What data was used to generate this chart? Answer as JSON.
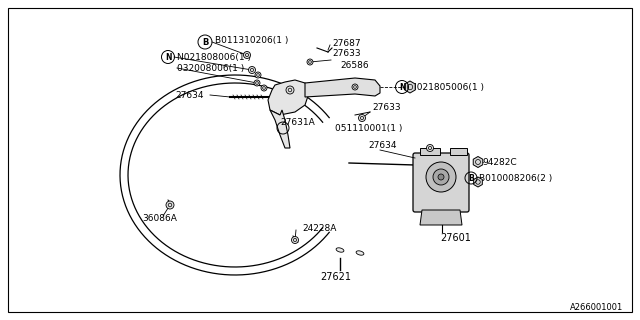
{
  "bg_color": "#ffffff",
  "line_color": "#000000",
  "fig_width": 6.4,
  "fig_height": 3.2,
  "dpi": 100,
  "part_number_ref": "A266001001",
  "labels": {
    "B_top": "B011310206(1 )",
    "N_top": "N021808006(1 )",
    "top_small": "032008006(1 )",
    "part27687": "27687",
    "part27633_top": "27633",
    "part26586": "26586",
    "part27634_left": "27634",
    "part27631A": "27631A",
    "N_right": "N021805006(1 )",
    "part27633_right": "27633",
    "part05111": "051110001(1 )",
    "part27634_right": "27634",
    "part94282C": "94282C",
    "B_bottom": "B010008206(2 )",
    "part24228A": "24228A",
    "part36086A": "36086A",
    "part27621": "27621",
    "part27601": "27601"
  }
}
